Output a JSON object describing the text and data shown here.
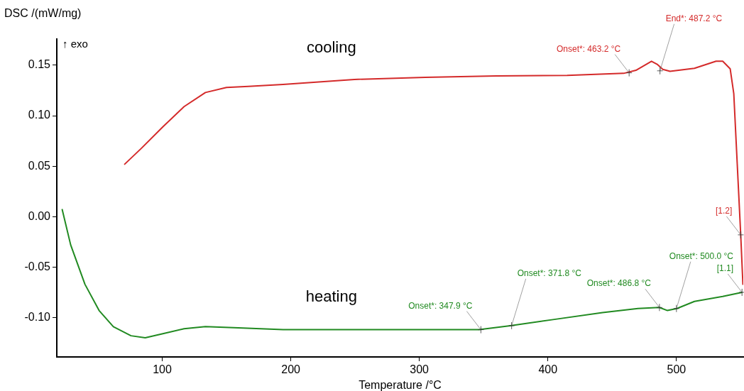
{
  "chart_data": {
    "type": "line",
    "xlabel": "Temperature /°C",
    "ylabel": "DSC /(mW/mg)",
    "xlim": [
      18,
      552
    ],
    "ylim": [
      -0.139,
      0.176
    ],
    "xticks": [
      100,
      200,
      300,
      400,
      500
    ],
    "yticks": [
      {
        "value": -0.1,
        "label": "-0.10"
      },
      {
        "value": -0.05,
        "label": "-0.05"
      },
      {
        "value": 0,
        "label": "0.00"
      },
      {
        "value": 0.05,
        "label": "0.05"
      },
      {
        "value": 0.1,
        "label": "0.10"
      },
      {
        "value": 0.15,
        "label": "0.15"
      }
    ],
    "grid": false,
    "legend": false,
    "marker": "none",
    "line_style": "solid",
    "series": [
      {
        "name": "cooling",
        "color": "#d42a2a",
        "x": [
          70.8,
          84,
          100.5,
          117,
          133.6,
          150,
          167,
          194,
          249.5,
          304.6,
          359.8,
          415,
          459,
          468.5,
          480.6,
          485,
          489.4,
          495,
          514,
          530.8,
          536,
          541.8,
          544.6,
          547.3,
          550,
          551.7
        ],
        "values": [
          0.052,
          0.068,
          0.089,
          0.109,
          0.123,
          0.128,
          0.129,
          0.131,
          0.136,
          0.138,
          0.1395,
          0.14,
          0.142,
          0.145,
          0.154,
          0.151,
          0.146,
          0.144,
          0.147,
          0.154,
          0.154,
          0.1465,
          0.122,
          0.052,
          -0.018,
          -0.067
        ]
      },
      {
        "name": "heating",
        "color": "#218a21",
        "x": [
          22.2,
          28.8,
          39.9,
          50.9,
          62,
          75.7,
          86.8,
          100.5,
          117,
          133.6,
          155.7,
          194,
          249.5,
          304.6,
          346.5,
          370.8,
          404,
          442.5,
          470,
          486.7,
          493,
          500.4,
          514,
          536,
          551
        ],
        "values": [
          0.007,
          -0.028,
          -0.067,
          -0.093,
          -0.109,
          -0.118,
          -0.12,
          -0.116,
          -0.111,
          -0.109,
          -0.11,
          -0.112,
          -0.112,
          -0.112,
          -0.112,
          -0.108,
          -0.102,
          -0.095,
          -0.091,
          -0.09,
          -0.093,
          -0.091,
          -0.084,
          -0.079,
          -0.075
        ]
      }
    ],
    "annotations": [
      "↑ exo",
      {
        "text": "Onset*: 463.2 °C",
        "x": 463.2,
        "y": 0.1425
      },
      {
        "text": "End*: 487.2 °C",
        "x": 487.2,
        "y": 0.1445
      },
      {
        "text": "[1.2]",
        "x": 550,
        "y": -0.018
      },
      {
        "text": "Onset*: 347.9 °C",
        "x": 347.9,
        "y": -0.112
      },
      {
        "text": "Onset*: 371.8 °C",
        "x": 371.8,
        "y": -0.108
      },
      {
        "text": "Onset*: 486.8 °C",
        "x": 486.8,
        "y": -0.09
      },
      {
        "text": "Onset*: 500.0 °C",
        "x": 500,
        "y": -0.091
      },
      {
        "text": "[1.1]",
        "x": 551,
        "y": -0.075
      }
    ]
  }
}
